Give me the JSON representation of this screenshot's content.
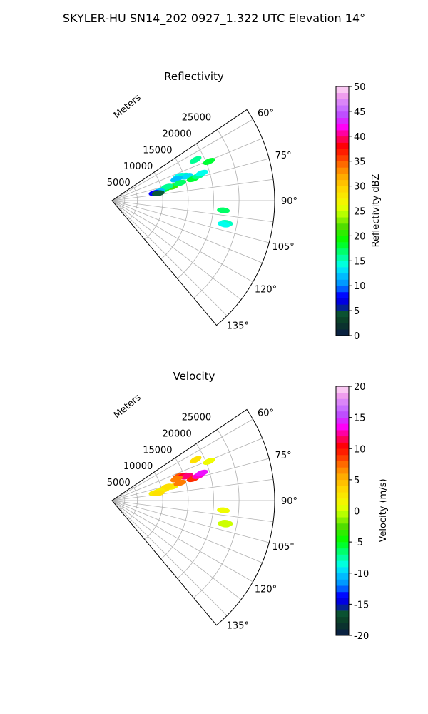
{
  "title": "SKYLER-HU  SN14_202  0927_1.322 UTC Elevation 14°",
  "panels": [
    {
      "title": "Reflectivity",
      "range_label": "Meters",
      "colorbar_label": "Reflectivity dBZ",
      "colorbar_ticks": [
        "0",
        "5",
        "10",
        "15",
        "20",
        "25",
        "30",
        "35",
        "40",
        "45",
        "50"
      ]
    },
    {
      "title": "Velocity",
      "range_label": "Meters",
      "colorbar_label": "Velocity (m/s)",
      "colorbar_ticks": [
        "-20",
        "-15",
        "-10",
        "-5",
        "0",
        "5",
        "10",
        "15",
        "20"
      ]
    }
  ],
  "chart_data": [
    {
      "type": "heatmap",
      "projection": "polar-sector",
      "title": "Reflectivity",
      "range_label": "Meters",
      "range_ticks": [
        5000,
        10000,
        15000,
        20000,
        25000
      ],
      "range_ticks_text": [
        "5000",
        "10000",
        "15000",
        "20000",
        "25000"
      ],
      "rmax": 32000,
      "azimuth_range_deg": [
        56,
        140
      ],
      "azimuth_ticks": [
        60,
        75,
        90,
        105,
        120,
        135
      ],
      "azimuth_ticks_text": [
        "60°",
        "75°",
        "90°",
        "105°",
        "120°",
        "135°"
      ],
      "colorbar": {
        "label": "Reflectivity dBZ",
        "min": 0,
        "max": 50,
        "ticks": [
          0,
          5,
          10,
          15,
          20,
          25,
          30,
          35,
          40,
          45,
          50
        ],
        "ticks_text": [
          "0",
          "5",
          "10",
          "15",
          "20",
          "25",
          "30",
          "35",
          "40",
          "45",
          "50"
        ]
      },
      "grid": true,
      "echoes": [
        {
          "az_deg": 70,
          "range_m": 14000,
          "value": 14
        },
        {
          "az_deg": 71,
          "range_m": 14800,
          "value": 15
        },
        {
          "az_deg": 72,
          "range_m": 15500,
          "value": 13
        },
        {
          "az_deg": 71.5,
          "range_m": 13400,
          "value": 12
        },
        {
          "az_deg": 78,
          "range_m": 10400,
          "value": 18
        },
        {
          "az_deg": 77,
          "range_m": 12200,
          "value": 21
        },
        {
          "az_deg": 76,
          "range_m": 11200,
          "value": 16
        },
        {
          "az_deg": 79,
          "range_m": 9400,
          "value": 12
        },
        {
          "az_deg": 80,
          "range_m": 8600,
          "value": 8
        },
        {
          "az_deg": 81,
          "range_m": 9200,
          "value": 5
        },
        {
          "az_deg": 75.5,
          "range_m": 13800,
          "value": 17
        },
        {
          "az_deg": 75,
          "range_m": 16500,
          "value": 18
        },
        {
          "az_deg": 74,
          "range_m": 17700,
          "value": 16
        },
        {
          "az_deg": 73,
          "range_m": 18500,
          "value": 14
        },
        {
          "az_deg": 64,
          "range_m": 18300,
          "value": 16
        },
        {
          "az_deg": 68,
          "range_m": 20600,
          "value": 18
        },
        {
          "az_deg": 95,
          "range_m": 22000,
          "value": 17
        },
        {
          "az_deg": 101,
          "range_m": 23000,
          "value": 15
        },
        {
          "az_deg": 102,
          "range_m": 22500,
          "value": 14
        }
      ]
    },
    {
      "type": "heatmap",
      "projection": "polar-sector",
      "title": "Velocity",
      "range_label": "Meters",
      "range_ticks": [
        5000,
        10000,
        15000,
        20000,
        25000
      ],
      "range_ticks_text": [
        "5000",
        "10000",
        "15000",
        "20000",
        "25000"
      ],
      "rmax": 32000,
      "azimuth_range_deg": [
        56,
        140
      ],
      "azimuth_ticks": [
        60,
        75,
        90,
        105,
        120,
        135
      ],
      "azimuth_ticks_text": [
        "60°",
        "75°",
        "90°",
        "105°",
        "120°",
        "135°"
      ],
      "colorbar": {
        "label": "Velocity (m/s)",
        "min": -20,
        "max": 20,
        "ticks": [
          -20,
          -15,
          -10,
          -5,
          0,
          5,
          10,
          15,
          20
        ],
        "ticks_text": [
          "-20",
          "-15",
          "-10",
          "-5",
          "0",
          "5",
          "10",
          "15",
          "20"
        ]
      },
      "grid": true,
      "echoes": [
        {
          "az_deg": 70,
          "range_m": 14000,
          "value": 8
        },
        {
          "az_deg": 71,
          "range_m": 14800,
          "value": 11
        },
        {
          "az_deg": 72,
          "range_m": 15500,
          "value": 12
        },
        {
          "az_deg": 71.5,
          "range_m": 13400,
          "value": 7
        },
        {
          "az_deg": 78,
          "range_m": 10400,
          "value": 3
        },
        {
          "az_deg": 77,
          "range_m": 12200,
          "value": 2
        },
        {
          "az_deg": 76,
          "range_m": 11200,
          "value": 3
        },
        {
          "az_deg": 79,
          "range_m": 9400,
          "value": 2
        },
        {
          "az_deg": 80,
          "range_m": 8600,
          "value": 2
        },
        {
          "az_deg": 81,
          "range_m": 9200,
          "value": 3
        },
        {
          "az_deg": 75.5,
          "range_m": 13800,
          "value": 7
        },
        {
          "az_deg": 75,
          "range_m": 16500,
          "value": 9
        },
        {
          "az_deg": 74,
          "range_m": 17700,
          "value": 13
        },
        {
          "az_deg": 73,
          "range_m": 18500,
          "value": 14
        },
        {
          "az_deg": 64,
          "range_m": 18300,
          "value": 3
        },
        {
          "az_deg": 68,
          "range_m": 20600,
          "value": 1
        },
        {
          "az_deg": 95,
          "range_m": 22000,
          "value": 1
        },
        {
          "az_deg": 101,
          "range_m": 23000,
          "value": 0
        },
        {
          "az_deg": 102,
          "range_m": 22500,
          "value": 0
        }
      ]
    }
  ]
}
